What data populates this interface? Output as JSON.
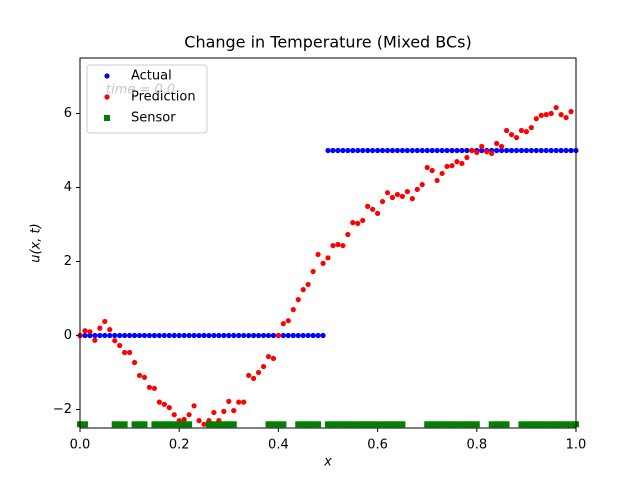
{
  "chart_data": {
    "type": "scatter",
    "title": "Change in Temperature (Mixed BCs)",
    "x_label": "x",
    "y_label": "u(x, t)",
    "annotation": "time = 0.0",
    "xlim": [
      0,
      1
    ],
    "ylim": [
      -2.5,
      7.5
    ],
    "xticks": [
      {
        "value": 0,
        "label": "0.0"
      },
      {
        "value": 0.2,
        "label": "0.2"
      },
      {
        "value": 0.4,
        "label": "0.4"
      },
      {
        "value": 0.6,
        "label": "0.6"
      },
      {
        "value": 0.8,
        "label": "0.8"
      },
      {
        "value": 1,
        "label": "1.0"
      }
    ],
    "yticks": [
      {
        "value": -2,
        "label": "−2"
      },
      0,
      2,
      4,
      6
    ],
    "legend": "upper left",
    "grid": false,
    "series": [
      {
        "name": "Actual",
        "color": "#0000ff",
        "marker": "o",
        "x": [
          0,
          0.01,
          0.02,
          0.03,
          0.04,
          0.05,
          0.06,
          0.07,
          0.08,
          0.09,
          0.1,
          0.11,
          0.12,
          0.13,
          0.14,
          0.15,
          0.16,
          0.17,
          0.18,
          0.19,
          0.2,
          0.21,
          0.22,
          0.23,
          0.24,
          0.25,
          0.26,
          0.27,
          0.28,
          0.29,
          0.3,
          0.31,
          0.32,
          0.33,
          0.34,
          0.35,
          0.36,
          0.37,
          0.38,
          0.39,
          0.4,
          0.41,
          0.42,
          0.43,
          0.44,
          0.45,
          0.46,
          0.47,
          0.48,
          0.49,
          0.5,
          0.51,
          0.52,
          0.53,
          0.54,
          0.55,
          0.56,
          0.57,
          0.58,
          0.59,
          0.6,
          0.61,
          0.62,
          0.63,
          0.64,
          0.65,
          0.66,
          0.67,
          0.68,
          0.69,
          0.7,
          0.71,
          0.72,
          0.73,
          0.74,
          0.75,
          0.76,
          0.77,
          0.78,
          0.79,
          0.8,
          0.81,
          0.82,
          0.83,
          0.84,
          0.85,
          0.86,
          0.87,
          0.88,
          0.89,
          0.9,
          0.91,
          0.92,
          0.93,
          0.94,
          0.95,
          0.96,
          0.97,
          0.98,
          0.99,
          1
        ],
        "values": [
          0,
          0,
          0,
          0,
          0,
          0,
          0,
          0,
          0,
          0,
          0,
          0,
          0,
          0,
          0,
          0,
          0,
          0,
          0,
          0,
          0,
          0,
          0,
          0,
          0,
          0,
          0,
          0,
          0,
          0,
          0,
          0,
          0,
          0,
          0,
          0,
          0,
          0,
          0,
          0,
          0,
          0,
          0,
          0,
          0,
          0,
          0,
          0,
          0,
          0,
          5,
          5,
          5,
          5,
          5,
          5,
          5,
          5,
          5,
          5,
          5,
          5,
          5,
          5,
          5,
          5,
          5,
          5,
          5,
          5,
          5,
          5,
          5,
          5,
          5,
          5,
          5,
          5,
          5,
          5,
          5,
          5,
          5,
          5,
          5,
          5,
          5,
          5,
          5,
          5,
          5,
          5,
          5,
          5,
          5,
          5,
          5,
          5,
          5,
          5,
          5
        ]
      },
      {
        "name": "Prediction",
        "color": "#ff0000",
        "marker": "o",
        "x": [
          0,
          0.01,
          0.02,
          0.03,
          0.04,
          0.05,
          0.06,
          0.07,
          0.08,
          0.09,
          0.1,
          0.11,
          0.12,
          0.13,
          0.14,
          0.15,
          0.16,
          0.17,
          0.18,
          0.19,
          0.2,
          0.21,
          0.22,
          0.23,
          0.24,
          0.25,
          0.26,
          0.27,
          0.28,
          0.29,
          0.3,
          0.31,
          0.32,
          0.33,
          0.34,
          0.35,
          0.36,
          0.37,
          0.38,
          0.39,
          0.4,
          0.41,
          0.42,
          0.43,
          0.44,
          0.45,
          0.46,
          0.47,
          0.48,
          0.49,
          0.5,
          0.51,
          0.52,
          0.53,
          0.54,
          0.55,
          0.56,
          0.57,
          0.58,
          0.59,
          0.6,
          0.61,
          0.62,
          0.63,
          0.64,
          0.65,
          0.66,
          0.67,
          0.68,
          0.69,
          0.7,
          0.71,
          0.72,
          0.73,
          0.74,
          0.75,
          0.76,
          0.77,
          0.78,
          0.79,
          0.8,
          0.81,
          0.82,
          0.83,
          0.84,
          0.85,
          0.86,
          0.87,
          0.88,
          0.89,
          0.9,
          0.91,
          0.92,
          0.93,
          0.94,
          0.95,
          0.96,
          0.97,
          0.98,
          0.99
        ],
        "values": [
          0,
          0.13,
          0.1,
          -0.13,
          0.2,
          0.38,
          0.16,
          -0.14,
          -0.27,
          -0.46,
          -0.46,
          -0.73,
          -1.08,
          -1.13,
          -1.4,
          -1.43,
          -1.8,
          -1.86,
          -1.95,
          -2.14,
          -2.3,
          -2.27,
          -2.14,
          -1.9,
          -2.3,
          -2.4,
          -2.3,
          -2.08,
          -2.3,
          -2.05,
          -1.78,
          -2.03,
          -1.8,
          -1.8,
          -1.08,
          -1.16,
          -1.0,
          -0.84,
          -0.57,
          -0.62,
          0,
          0.32,
          0.4,
          0.7,
          0.97,
          1.24,
          1.38,
          1.73,
          2.19,
          1.95,
          2.1,
          2.43,
          2.46,
          2.43,
          2.73,
          3.05,
          3.03,
          3.11,
          3.49,
          3.41,
          3.3,
          3.62,
          3.86,
          3.73,
          3.81,
          3.76,
          3.89,
          3.7,
          3.95,
          4.08,
          4.54,
          4.46,
          4.19,
          4.38,
          4.57,
          4.59,
          4.7,
          4.65,
          4.81,
          5.0,
          4.95,
          5.11,
          4.97,
          4.92,
          5.19,
          5.11,
          5.54,
          5.43,
          5.35,
          5.54,
          5.51,
          5.62,
          5.86,
          5.95,
          5.97,
          6.0,
          6.16,
          5.97,
          5.89,
          6.05
        ]
      },
      {
        "name": "Sensor",
        "color": "#008000",
        "marker": "s",
        "x": [
          0,
          0.01,
          0.07,
          0.08,
          0.09,
          0.11,
          0.12,
          0.13,
          0.15,
          0.16,
          0.17,
          0.18,
          0.19,
          0.2,
          0.21,
          0.22,
          0.26,
          0.27,
          0.28,
          0.29,
          0.3,
          0.31,
          0.38,
          0.39,
          0.4,
          0.41,
          0.44,
          0.45,
          0.46,
          0.47,
          0.48,
          0.5,
          0.51,
          0.52,
          0.53,
          0.54,
          0.55,
          0.56,
          0.57,
          0.58,
          0.59,
          0.6,
          0.61,
          0.62,
          0.63,
          0.64,
          0.65,
          0.7,
          0.71,
          0.72,
          0.73,
          0.74,
          0.75,
          0.76,
          0.77,
          0.78,
          0.79,
          0.8,
          0.83,
          0.84,
          0.85,
          0.86,
          0.89,
          0.9,
          0.91,
          0.92,
          0.93,
          0.94,
          0.95,
          0.96,
          0.97,
          0.98,
          0.99,
          1
        ],
        "values": [
          -2.4,
          -2.4,
          -2.4,
          -2.4,
          -2.4,
          -2.4,
          -2.4,
          -2.4,
          -2.4,
          -2.4,
          -2.4,
          -2.4,
          -2.4,
          -2.4,
          -2.4,
          -2.4,
          -2.4,
          -2.4,
          -2.4,
          -2.4,
          -2.4,
          -2.4,
          -2.4,
          -2.4,
          -2.4,
          -2.4,
          -2.4,
          -2.4,
          -2.4,
          -2.4,
          -2.4,
          -2.4,
          -2.4,
          -2.4,
          -2.4,
          -2.4,
          -2.4,
          -2.4,
          -2.4,
          -2.4,
          -2.4,
          -2.4,
          -2.4,
          -2.4,
          -2.4,
          -2.4,
          -2.4,
          -2.4,
          -2.4,
          -2.4,
          -2.4,
          -2.4,
          -2.4,
          -2.4,
          -2.4,
          -2.4,
          -2.4,
          -2.4,
          -2.4,
          -2.4,
          -2.4,
          -2.4,
          -2.4,
          -2.4,
          -2.4,
          -2.4,
          -2.4,
          -2.4,
          -2.4,
          -2.4,
          -2.4,
          -2.4,
          -2.4,
          -2.4
        ]
      }
    ]
  }
}
